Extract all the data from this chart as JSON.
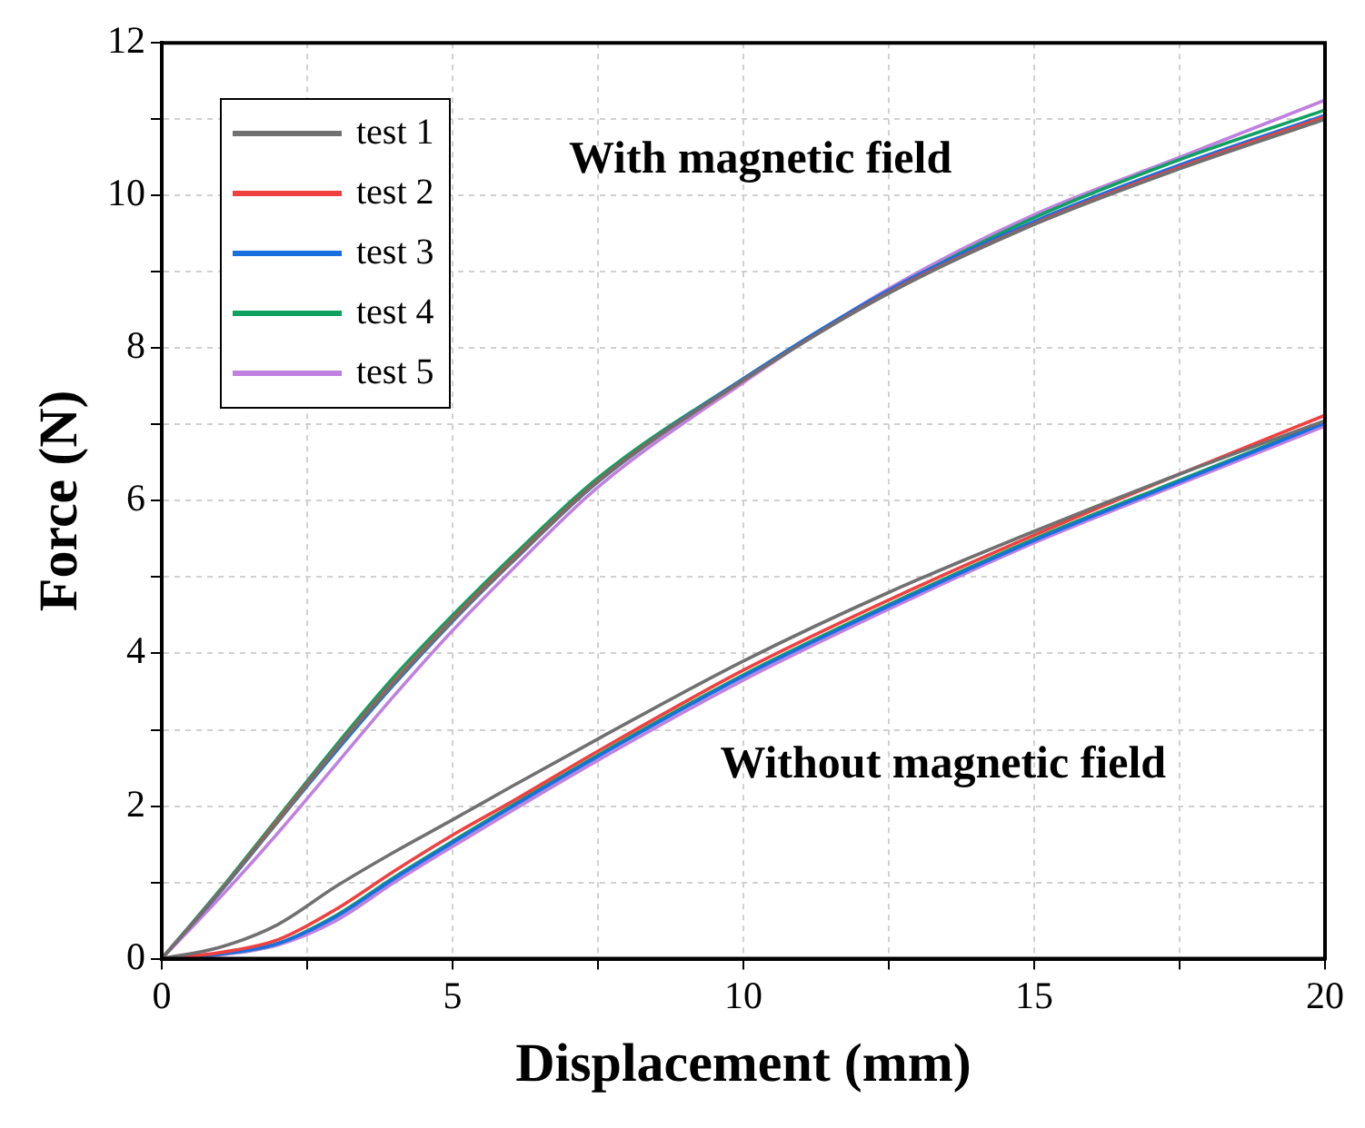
{
  "chart_data": {
    "type": "line",
    "xlabel": "Displacement (mm)",
    "ylabel": "Force (N)",
    "xlim": [
      0,
      20
    ],
    "ylim": [
      0,
      12
    ],
    "xticks": [
      0,
      {
        "value": 2.5,
        "label": null
      },
      5,
      {
        "value": 7.5,
        "label": null
      },
      10,
      {
        "value": 12.5,
        "label": null
      },
      15,
      {
        "value": 17.5,
        "label": null
      },
      20
    ],
    "yticks": [
      0,
      {
        "value": 1,
        "label": null
      },
      2,
      {
        "value": 3,
        "label": null
      },
      4,
      {
        "value": 5,
        "label": null
      },
      6,
      {
        "value": 7,
        "label": null
      },
      8,
      {
        "value": 9,
        "label": null
      },
      10,
      {
        "value": 11,
        "label": null
      },
      12
    ],
    "grid": true,
    "legend": "top left",
    "marker": "none",
    "line_style": "solid",
    "annotations": [
      "With magnetic field",
      "Without magnetic field"
    ],
    "x": [
      0,
      1,
      2,
      3,
      4,
      5,
      6,
      7.5,
      10,
      12.5,
      15,
      17.5,
      20
    ],
    "series": [
      {
        "name": "test 1",
        "color": "#707070",
        "values": [
          0,
          0.88,
          1.8,
          2.75,
          3.62,
          4.43,
          5.18,
          6.25,
          7.58,
          8.72,
          9.62,
          10.35,
          11.0
        ]
      },
      {
        "name": "test 2",
        "color": "#f04040",
        "values": [
          0,
          0.88,
          1.82,
          2.76,
          3.64,
          4.45,
          5.2,
          6.26,
          7.58,
          8.73,
          9.63,
          10.37,
          11.03
        ]
      },
      {
        "name": "test 3",
        "color": "#1a6fe0",
        "values": [
          0,
          0.87,
          1.8,
          2.72,
          3.6,
          4.42,
          5.18,
          6.25,
          7.6,
          8.76,
          9.66,
          10.4,
          11.05
        ]
      },
      {
        "name": "test 4",
        "color": "#10a060",
        "values": [
          0,
          0.9,
          1.85,
          2.8,
          3.7,
          4.5,
          5.25,
          6.3,
          7.6,
          8.75,
          9.71,
          10.47,
          11.12
        ]
      },
      {
        "name": "test 5",
        "color": "#c080e0",
        "values": [
          0,
          0.8,
          1.65,
          2.55,
          3.45,
          4.3,
          5.08,
          6.18,
          7.55,
          8.78,
          9.75,
          10.5,
          11.25
        ]
      },
      {
        "color": "#707070",
        "values": [
          0,
          0.15,
          0.45,
          0.95,
          1.4,
          1.82,
          2.25,
          2.88,
          3.9,
          4.8,
          5.6,
          6.35,
          7.05
        ]
      },
      {
        "color": "#f04040",
        "values": [
          0,
          0.08,
          0.25,
          0.65,
          1.15,
          1.62,
          2.05,
          2.72,
          3.78,
          4.7,
          5.55,
          6.35,
          7.12
        ]
      },
      {
        "color": "#1a6fe0",
        "values": [
          0,
          0.06,
          0.2,
          0.55,
          1.05,
          1.52,
          1.98,
          2.65,
          3.7,
          4.62,
          5.48,
          6.25,
          7.02
        ]
      },
      {
        "color": "#10a060",
        "values": [
          0,
          0.06,
          0.2,
          0.57,
          1.07,
          1.54,
          2.0,
          2.67,
          3.72,
          4.64,
          5.5,
          6.27,
          7.03
        ]
      },
      {
        "color": "#c080e0",
        "values": [
          0,
          0.05,
          0.18,
          0.5,
          1.0,
          1.47,
          1.93,
          2.6,
          3.65,
          4.58,
          5.45,
          6.22,
          6.98
        ]
      }
    ]
  }
}
